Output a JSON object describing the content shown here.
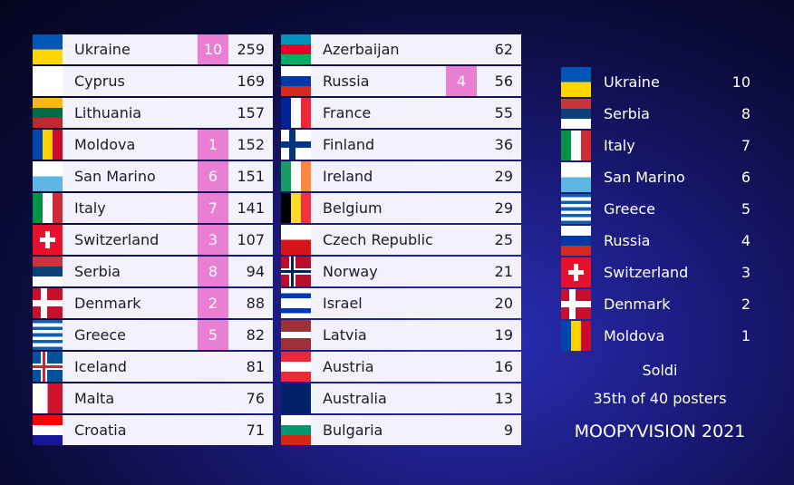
{
  "scoreboard": {
    "columns": [
      {
        "rows": [
          {
            "country": "Ukraine",
            "points": 10,
            "total": 259
          },
          {
            "country": "Cyprus",
            "total": 169
          },
          {
            "country": "Lithuania",
            "total": 157
          },
          {
            "country": "Moldova",
            "points": 1,
            "total": 152
          },
          {
            "country": "San Marino",
            "points": 6,
            "total": 151
          },
          {
            "country": "Italy",
            "points": 7,
            "total": 141
          },
          {
            "country": "Switzerland",
            "points": 3,
            "total": 107
          },
          {
            "country": "Serbia",
            "points": 8,
            "total": 94
          },
          {
            "country": "Denmark",
            "points": 2,
            "total": 88
          },
          {
            "country": "Greece",
            "points": 5,
            "total": 82
          },
          {
            "country": "Iceland",
            "total": 81
          },
          {
            "country": "Malta",
            "total": 76
          },
          {
            "country": "Croatia",
            "total": 71
          }
        ]
      },
      {
        "rows": [
          {
            "country": "Azerbaijan",
            "total": 62
          },
          {
            "country": "Russia",
            "points": 4,
            "total": 56
          },
          {
            "country": "France",
            "total": 55
          },
          {
            "country": "Finland",
            "total": 36
          },
          {
            "country": "Ireland",
            "total": 29
          },
          {
            "country": "Belgium",
            "total": 29
          },
          {
            "country": "Czech Republic",
            "total": 25
          },
          {
            "country": "Norway",
            "total": 21
          },
          {
            "country": "Israel",
            "total": 20
          },
          {
            "country": "Latvia",
            "total": 19
          },
          {
            "country": "Austria",
            "total": 16
          },
          {
            "country": "Australia",
            "total": 13
          },
          {
            "country": "Bulgaria",
            "total": 9
          }
        ]
      }
    ]
  },
  "voter": {
    "rows": [
      {
        "country": "Ukraine",
        "points": 10
      },
      {
        "country": "Serbia",
        "points": 8
      },
      {
        "country": "Italy",
        "points": 7
      },
      {
        "country": "San Marino",
        "points": 6
      },
      {
        "country": "Greece",
        "points": 5
      },
      {
        "country": "Russia",
        "points": 4
      },
      {
        "country": "Switzerland",
        "points": 3
      },
      {
        "country": "Denmark",
        "points": 2
      },
      {
        "country": "Moldova",
        "points": 1
      }
    ],
    "name": "Soldi",
    "rank": "35th of 40 posters"
  },
  "footer": "MOOPYVISION 2021"
}
